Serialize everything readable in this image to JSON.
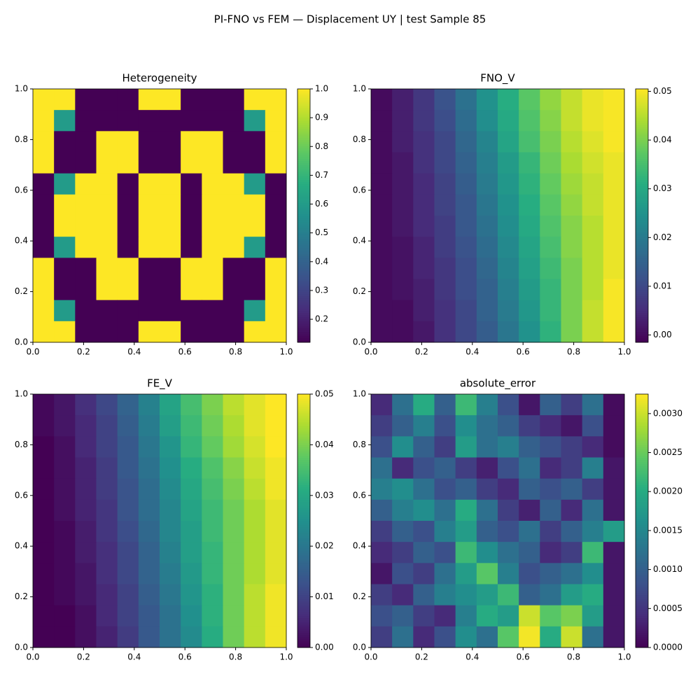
{
  "figure_title": "PI-FNO vs FEM — Displacement UY | test Sample 85",
  "chart_data": [
    {
      "type": "heatmap",
      "title": "Heterogeneity",
      "colormap": "viridis",
      "xlim": [
        0,
        1
      ],
      "ylim": [
        0,
        1
      ],
      "xticks": [
        {
          "value": 0,
          "label": "0.0"
        },
        0.2,
        0.4,
        0.6,
        0.8,
        {
          "value": 1,
          "label": "1.0"
        }
      ],
      "yticks": [
        {
          "value": 0,
          "label": "0.0"
        },
        0.2,
        0.4,
        0.6,
        0.8,
        {
          "value": 1,
          "label": "1.0"
        }
      ],
      "clim": [
        0.12,
        1
      ],
      "cticks": [
        0.2,
        0.3,
        0.4,
        0.5,
        0.6,
        0.7,
        0.8,
        0.9,
        {
          "value": 1,
          "label": "1.0"
        }
      ],
      "z": [
        [
          1,
          1,
          0.12,
          0.12,
          0.12,
          1,
          1,
          0.12,
          0.12,
          0.12,
          1,
          1
        ],
        [
          1,
          0.6,
          0.12,
          0.12,
          0.12,
          0.12,
          0.12,
          0.12,
          0.12,
          0.12,
          0.6,
          1
        ],
        [
          1,
          0.12,
          0.12,
          1,
          1,
          0.12,
          0.12,
          1,
          1,
          0.12,
          0.12,
          1
        ],
        [
          1,
          0.12,
          0.12,
          1,
          1,
          0.12,
          0.12,
          1,
          1,
          0.12,
          0.12,
          1
        ],
        [
          0.12,
          0.6,
          1,
          1,
          0.12,
          1,
          1,
          0.12,
          1,
          1,
          0.6,
          0.12
        ],
        [
          0.12,
          1,
          1,
          1,
          0.12,
          1,
          1,
          0.12,
          1,
          1,
          1,
          0.12
        ],
        [
          0.12,
          1,
          1,
          1,
          0.12,
          1,
          1,
          0.12,
          1,
          1,
          1,
          0.12
        ],
        [
          0.12,
          0.6,
          1,
          1,
          0.12,
          1,
          1,
          0.12,
          1,
          1,
          0.6,
          0.12
        ],
        [
          1,
          0.12,
          0.12,
          1,
          1,
          0.12,
          0.12,
          1,
          1,
          0.12,
          0.12,
          1
        ],
        [
          1,
          0.12,
          0.12,
          1,
          1,
          0.12,
          0.12,
          1,
          1,
          0.12,
          0.12,
          1
        ],
        [
          1,
          0.6,
          0.12,
          0.12,
          0.12,
          0.12,
          0.12,
          0.12,
          0.12,
          0.12,
          0.6,
          1
        ],
        [
          1,
          1,
          0.12,
          0.12,
          0.12,
          1,
          1,
          0.12,
          0.12,
          0.12,
          1,
          1
        ]
      ]
    },
    {
      "type": "heatmap",
      "title": "FNO_V",
      "colormap": "viridis",
      "xlim": [
        0,
        1
      ],
      "ylim": [
        0,
        1
      ],
      "xticks": [
        {
          "value": 0,
          "label": "0.0"
        },
        0.2,
        0.4,
        0.6,
        0.8,
        {
          "value": 1,
          "label": "1.0"
        }
      ],
      "yticks": [
        {
          "value": 0,
          "label": "0.0"
        },
        0.2,
        0.4,
        0.6,
        0.8,
        {
          "value": 1,
          "label": "1.0"
        }
      ],
      "clim": [
        -0.0015,
        0.0505
      ],
      "cticks": [
        {
          "value": 0,
          "label": "0.00"
        },
        0.01,
        0.02,
        0.03,
        0.04,
        0.05
      ],
      "z": [
        [
          0.0,
          0.003,
          0.007,
          0.012,
          0.018,
          0.025,
          0.031,
          0.037,
          0.042,
          0.046,
          0.049,
          0.05
        ],
        [
          0.0,
          0.003,
          0.007,
          0.011,
          0.017,
          0.024,
          0.03,
          0.036,
          0.041,
          0.046,
          0.049,
          0.05
        ],
        [
          0.0,
          0.003,
          0.006,
          0.01,
          0.016,
          0.022,
          0.029,
          0.035,
          0.04,
          0.045,
          0.048,
          0.05
        ],
        [
          0.0,
          0.002,
          0.006,
          0.01,
          0.015,
          0.021,
          0.027,
          0.033,
          0.039,
          0.044,
          0.047,
          0.049
        ],
        [
          0.0,
          0.002,
          0.005,
          0.009,
          0.014,
          0.02,
          0.026,
          0.032,
          0.038,
          0.043,
          0.046,
          0.049
        ],
        [
          0.0,
          0.002,
          0.005,
          0.009,
          0.013,
          0.019,
          0.025,
          0.031,
          0.037,
          0.042,
          0.046,
          0.049
        ],
        [
          0.0,
          0.002,
          0.005,
          0.008,
          0.013,
          0.018,
          0.024,
          0.03,
          0.036,
          0.041,
          0.045,
          0.049
        ],
        [
          0.0,
          0.001,
          0.004,
          0.008,
          0.012,
          0.017,
          0.023,
          0.029,
          0.035,
          0.041,
          0.045,
          0.049
        ],
        [
          0.0,
          0.001,
          0.004,
          0.007,
          0.011,
          0.016,
          0.022,
          0.028,
          0.034,
          0.04,
          0.045,
          0.049
        ],
        [
          0.0,
          0.001,
          0.003,
          0.007,
          0.011,
          0.015,
          0.021,
          0.027,
          0.033,
          0.04,
          0.045,
          0.05
        ],
        [
          0.0,
          0.0,
          0.003,
          0.006,
          0.01,
          0.015,
          0.02,
          0.026,
          0.033,
          0.04,
          0.046,
          0.05
        ],
        [
          0.0,
          0.0,
          0.002,
          0.006,
          0.01,
          0.014,
          0.019,
          0.025,
          0.032,
          0.04,
          0.046,
          0.05
        ]
      ]
    },
    {
      "type": "heatmap",
      "title": "FE_V",
      "colormap": "viridis",
      "xlim": [
        0,
        1
      ],
      "ylim": [
        0,
        1
      ],
      "xticks": [
        {
          "value": 0,
          "label": "0.0"
        },
        0.2,
        0.4,
        0.6,
        0.8,
        {
          "value": 1,
          "label": "1.0"
        }
      ],
      "yticks": [
        {
          "value": 0,
          "label": "0.0"
        },
        0.2,
        0.4,
        0.6,
        0.8,
        {
          "value": 1,
          "label": "1.0"
        }
      ],
      "clim": [
        0,
        0.05
      ],
      "cticks": [
        {
          "value": 0,
          "label": "0.00"
        },
        0.01,
        0.02,
        0.03,
        0.04,
        0.05
      ],
      "z": [
        [
          0.001,
          0.003,
          0.007,
          0.011,
          0.016,
          0.022,
          0.029,
          0.035,
          0.04,
          0.045,
          0.048,
          0.05
        ],
        [
          0.001,
          0.003,
          0.006,
          0.01,
          0.015,
          0.021,
          0.028,
          0.034,
          0.039,
          0.044,
          0.048,
          0.05
        ],
        [
          0.0,
          0.002,
          0.006,
          0.01,
          0.014,
          0.02,
          0.026,
          0.033,
          0.038,
          0.043,
          0.047,
          0.05
        ],
        [
          0.0,
          0.002,
          0.005,
          0.009,
          0.014,
          0.019,
          0.025,
          0.031,
          0.036,
          0.041,
          0.046,
          0.049
        ],
        [
          0.0,
          0.002,
          0.005,
          0.009,
          0.013,
          0.018,
          0.024,
          0.03,
          0.035,
          0.04,
          0.045,
          0.049
        ],
        [
          0.0,
          0.002,
          0.005,
          0.008,
          0.013,
          0.018,
          0.023,
          0.029,
          0.034,
          0.039,
          0.044,
          0.048
        ],
        [
          0.0,
          0.001,
          0.004,
          0.008,
          0.012,
          0.017,
          0.023,
          0.028,
          0.034,
          0.039,
          0.044,
          0.048
        ],
        [
          0.0,
          0.001,
          0.004,
          0.007,
          0.011,
          0.016,
          0.022,
          0.028,
          0.033,
          0.039,
          0.044,
          0.048
        ],
        [
          0.0,
          0.001,
          0.003,
          0.007,
          0.011,
          0.016,
          0.021,
          0.027,
          0.033,
          0.039,
          0.044,
          0.048
        ],
        [
          0.0,
          0.001,
          0.003,
          0.006,
          0.01,
          0.015,
          0.02,
          0.026,
          0.032,
          0.039,
          0.045,
          0.049
        ],
        [
          0.0,
          0.0,
          0.002,
          0.006,
          0.01,
          0.014,
          0.019,
          0.025,
          0.032,
          0.039,
          0.045,
          0.049
        ],
        [
          0.0,
          0.0,
          0.002,
          0.005,
          0.009,
          0.014,
          0.019,
          0.024,
          0.031,
          0.039,
          0.045,
          0.049
        ]
      ]
    },
    {
      "type": "heatmap",
      "title": "absolute_error",
      "colormap": "viridis",
      "xlim": [
        0,
        1
      ],
      "ylim": [
        0,
        1
      ],
      "xticks": [
        {
          "value": 0,
          "label": "0.0"
        },
        0.2,
        0.4,
        0.6,
        0.8,
        {
          "value": 1,
          "label": "1.0"
        }
      ],
      "yticks": [
        {
          "value": 0,
          "label": "0.0"
        },
        0.2,
        0.4,
        0.6,
        0.8,
        {
          "value": 1,
          "label": "1.0"
        }
      ],
      "clim": [
        0,
        0.00325
      ],
      "cticks": [
        {
          "value": 0,
          "label": "0.0000"
        },
        {
          "value": 0.0005,
          "label": "0.0005"
        },
        {
          "value": 0.001,
          "label": "0.0010"
        },
        {
          "value": 0.0015,
          "label": "0.0015"
        },
        {
          "value": 0.002,
          "label": "0.0020"
        },
        {
          "value": 0.0025,
          "label": "0.0025"
        },
        {
          "value": 0.003,
          "label": "0.0030"
        }
      ],
      "z": [
        [
          0.0004,
          0.0012,
          0.002,
          0.001,
          0.0022,
          0.0014,
          0.0008,
          0.0002,
          0.001,
          0.0006,
          0.0012,
          0.0001
        ],
        [
          0.0006,
          0.001,
          0.0014,
          0.0008,
          0.0016,
          0.0012,
          0.001,
          0.0006,
          0.0004,
          0.0002,
          0.0008,
          0.0001
        ],
        [
          0.0008,
          0.0016,
          0.001,
          0.0006,
          0.0018,
          0.0012,
          0.0014,
          0.001,
          0.0008,
          0.0006,
          0.0004,
          0.0001
        ],
        [
          0.0012,
          0.0004,
          0.0008,
          0.001,
          0.0006,
          0.0003,
          0.0008,
          0.0012,
          0.0004,
          0.0006,
          0.0014,
          0.0002
        ],
        [
          0.0014,
          0.0016,
          0.0012,
          0.0008,
          0.001,
          0.0006,
          0.0004,
          0.001,
          0.0008,
          0.001,
          0.0006,
          0.0002
        ],
        [
          0.001,
          0.0014,
          0.0016,
          0.0012,
          0.002,
          0.0012,
          0.0006,
          0.0003,
          0.001,
          0.0004,
          0.0012,
          0.0002
        ],
        [
          0.0006,
          0.001,
          0.0008,
          0.0014,
          0.0018,
          0.001,
          0.0008,
          0.0012,
          0.0006,
          0.001,
          0.0014,
          0.0018
        ],
        [
          0.0004,
          0.0006,
          0.001,
          0.0008,
          0.0022,
          0.0016,
          0.0012,
          0.001,
          0.0004,
          0.0006,
          0.0022,
          0.0002
        ],
        [
          0.0002,
          0.0008,
          0.0006,
          0.0012,
          0.0018,
          0.0024,
          0.0014,
          0.0008,
          0.001,
          0.0012,
          0.0016,
          0.0002
        ],
        [
          0.0006,
          0.0004,
          0.001,
          0.0014,
          0.0016,
          0.0018,
          0.0022,
          0.001,
          0.0012,
          0.0018,
          0.002,
          0.0002
        ],
        [
          0.0008,
          0.001,
          0.0006,
          0.0004,
          0.0014,
          0.002,
          0.0018,
          0.003,
          0.0024,
          0.0026,
          0.0018,
          0.0002
        ],
        [
          0.0006,
          0.0012,
          0.0004,
          0.0008,
          0.0016,
          0.0012,
          0.0024,
          0.0032,
          0.002,
          0.003,
          0.0012,
          0.0002
        ]
      ]
    }
  ]
}
